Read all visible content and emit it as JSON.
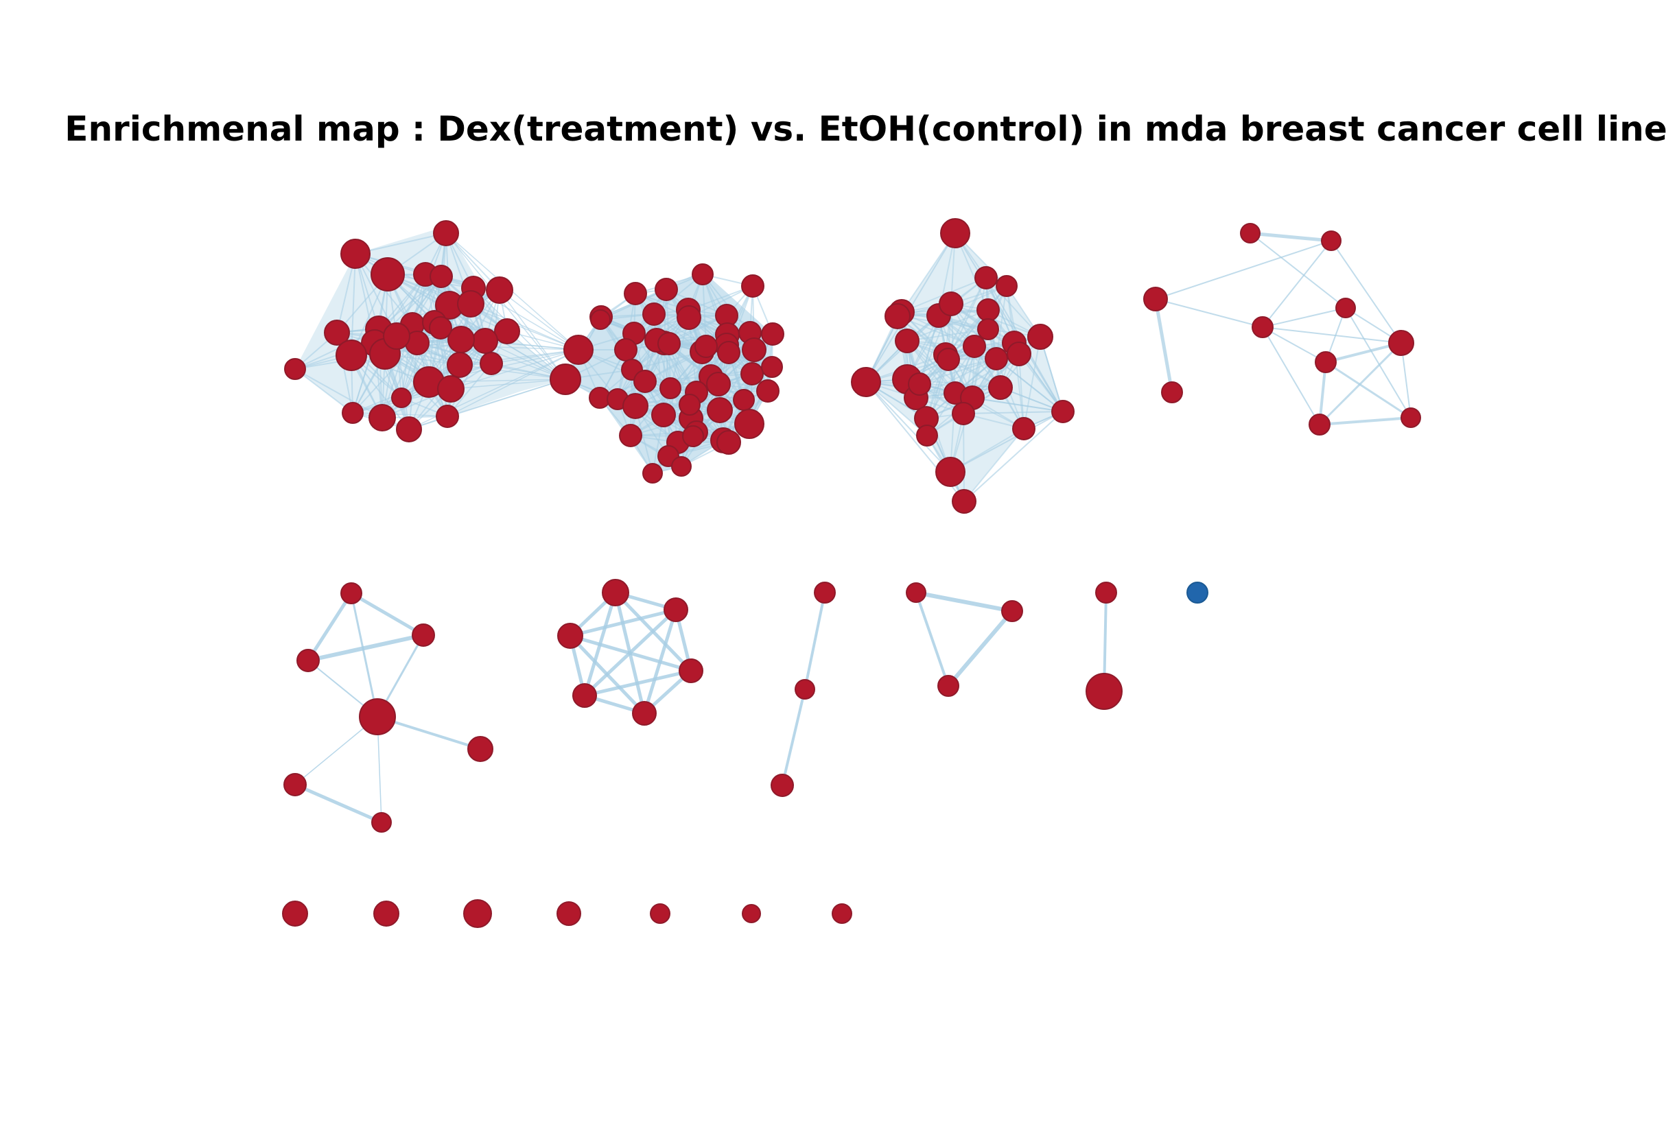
{
  "title": "Enrichmenal map : Dex(treatment)  vs. EtOH(control) in mda breast cancer cell line",
  "colors": {
    "node_up": "#b2182b",
    "node_down": "#2166ac",
    "edge": "#a6cde3",
    "background": "#ffffff"
  }
}
